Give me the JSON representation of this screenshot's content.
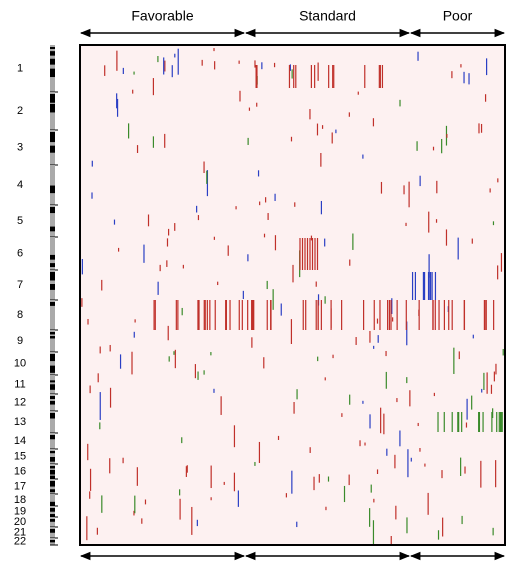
{
  "groups": [
    "Favorable",
    "Standard",
    "Poor"
  ],
  "chromosomes": [
    "1",
    "2",
    "3",
    "4",
    "5",
    "6",
    "7",
    "8",
    "9",
    "10",
    "11",
    "12",
    "13",
    "14",
    "15",
    "16",
    "17",
    "18",
    "19",
    "20",
    "21",
    "22"
  ]
}
